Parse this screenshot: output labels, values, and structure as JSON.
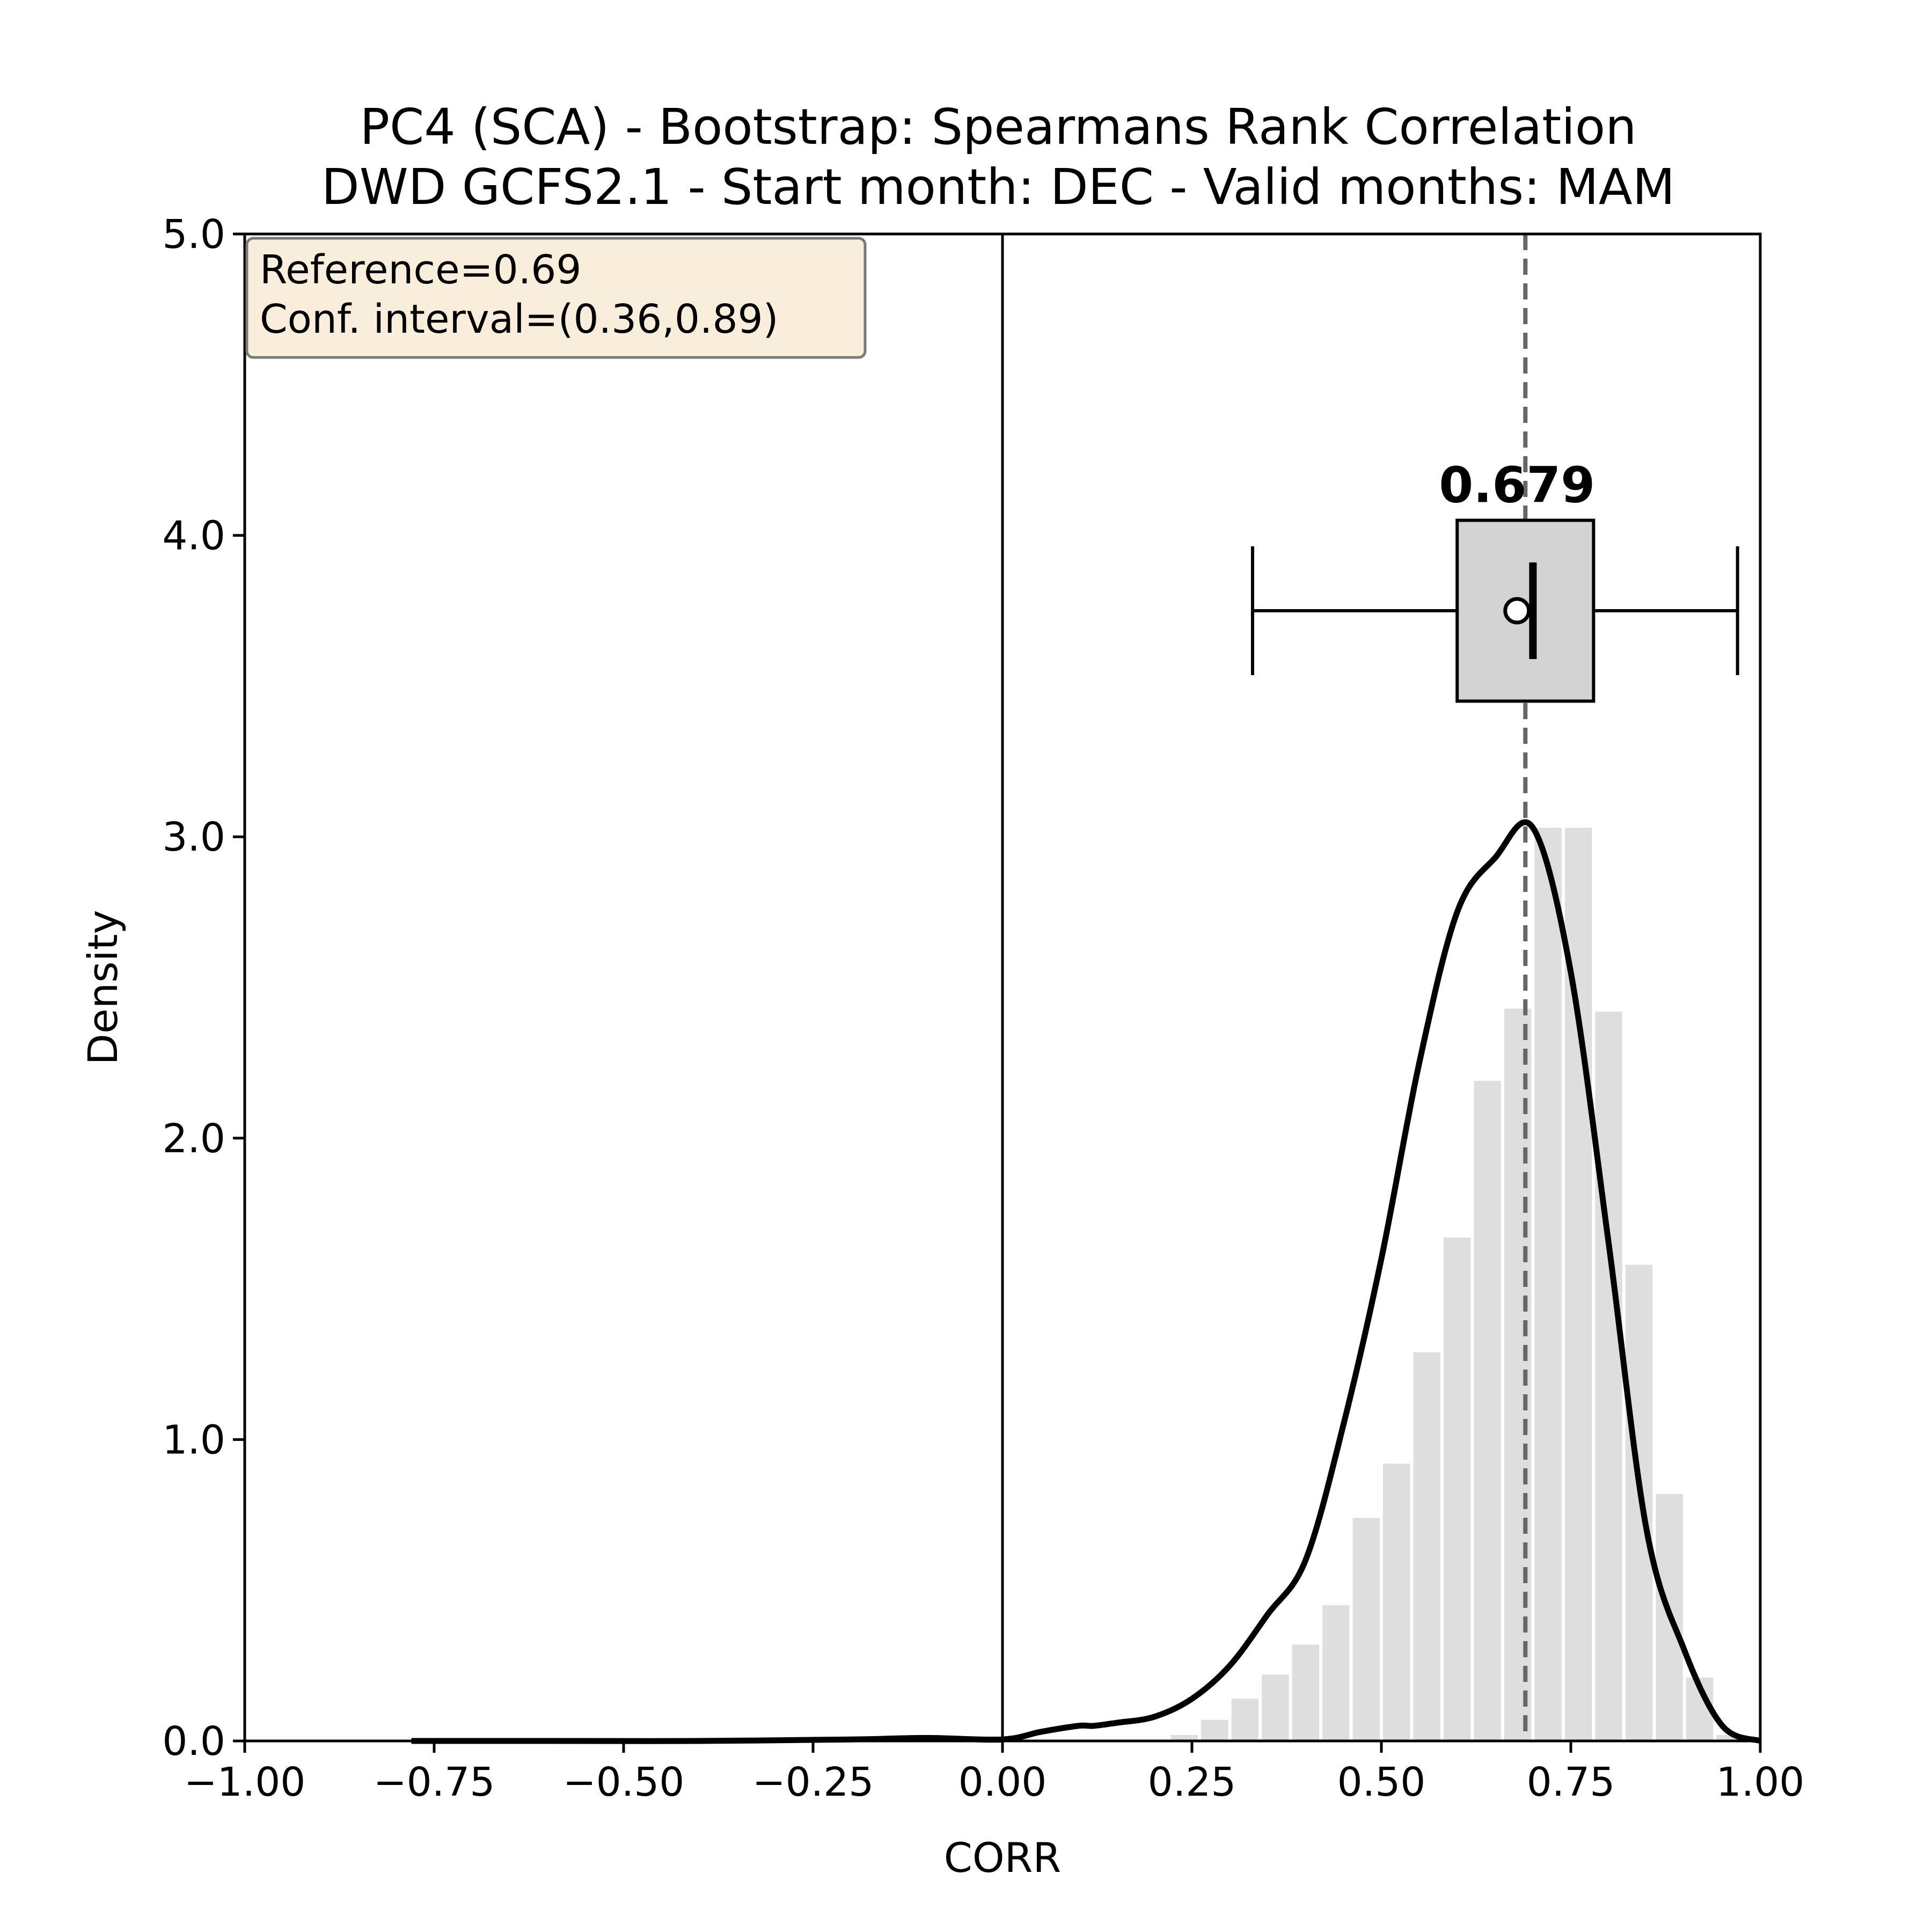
{
  "chart_data": {
    "type": "bar",
    "title_line1": "PC4 (SCA) - Bootstrap: Spearmans Rank Correlation",
    "title_line2": "DWD GCFS2.1 - Start month: DEC - Valid months: MAM",
    "xlabel": "CORR",
    "ylabel": "Density",
    "xlim": [
      -1.0,
      1.0
    ],
    "ylim": [
      0.0,
      5.0
    ],
    "xticks": [
      -1.0,
      -0.75,
      -0.5,
      -0.25,
      0.0,
      0.25,
      0.5,
      0.75,
      1.0
    ],
    "xtick_labels": [
      "−1.00",
      "−0.75",
      "−0.50",
      "−0.25",
      "0.00",
      "0.25",
      "0.50",
      "0.75",
      "1.00"
    ],
    "yticks": [
      0.0,
      1.0,
      2.0,
      3.0,
      4.0,
      5.0
    ],
    "ytick_labels": [
      "0.0",
      "1.0",
      "2.0",
      "3.0",
      "4.0",
      "5.0"
    ],
    "histogram": {
      "bin_width": 0.04,
      "bin_left_edges": [
        0.22,
        0.26,
        0.3,
        0.34,
        0.38,
        0.42,
        0.46,
        0.5,
        0.54,
        0.58,
        0.62,
        0.66,
        0.7,
        0.74,
        0.78,
        0.82,
        0.86,
        0.9,
        0.94
      ],
      "values": [
        0.02,
        0.07,
        0.14,
        0.22,
        0.32,
        0.45,
        0.74,
        0.92,
        1.29,
        1.67,
        2.19,
        2.43,
        3.03,
        3.03,
        2.42,
        1.58,
        0.82,
        0.21,
        0.02
      ],
      "color": "#dedede"
    },
    "kde": {
      "x": [
        -0.78,
        -0.6,
        -0.4,
        -0.2,
        -0.1,
        0.0,
        0.05,
        0.1,
        0.12,
        0.15,
        0.2,
        0.25,
        0.3,
        0.35,
        0.4,
        0.45,
        0.5,
        0.55,
        0.6,
        0.65,
        0.7,
        0.75,
        0.8,
        0.85,
        0.9,
        0.95,
        1.0
      ],
      "y": [
        0.0,
        0.0,
        0.0,
        0.005,
        0.01,
        0.005,
        0.03,
        0.05,
        0.05,
        0.06,
        0.08,
        0.14,
        0.25,
        0.42,
        0.6,
        1.05,
        1.6,
        2.25,
        2.75,
        2.93,
        3.03,
        2.55,
        1.65,
        0.7,
        0.3,
        0.05,
        0.0
      ],
      "color": "#000000"
    },
    "zero_line_x": 0.0,
    "reference_line": {
      "x": 0.69,
      "style": "dashed",
      "color": "#666666"
    },
    "boxplot": {
      "y_center": 3.75,
      "box_bottom": 3.45,
      "box_top": 4.05,
      "whisker_low": 0.33,
      "q1": 0.6,
      "median": 0.7,
      "q3": 0.78,
      "whisker_high": 0.97,
      "mean": 0.679,
      "median_label": "0.679",
      "box_color": "#d3d3d3"
    },
    "text_box": {
      "line1": "Reference=0.69",
      "line2": "Conf. interval=(0.36,0.89)",
      "facecolor": "#f8eedb",
      "placement": "top-left"
    },
    "grid": false
  }
}
